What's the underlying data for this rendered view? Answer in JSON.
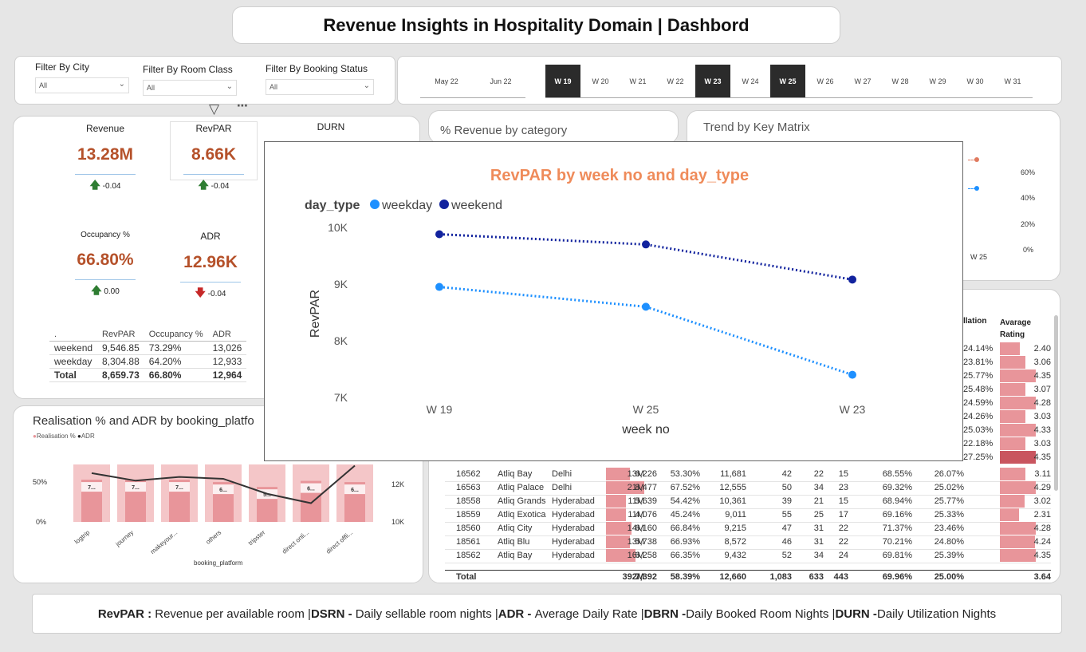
{
  "title": "Revenue Insights in Hospitality Domain | Dashbord",
  "filters": [
    {
      "label": "Filter By City",
      "value": "All"
    },
    {
      "label": "Filter By Room Class",
      "value": "All"
    },
    {
      "label": "Filter By Booking Status",
      "value": "All"
    }
  ],
  "weeks": {
    "months": [
      "May 22",
      "Jun 22"
    ],
    "items": [
      {
        "label": "W 19",
        "selected": true
      },
      {
        "label": "W 20",
        "selected": false
      },
      {
        "label": "W 21",
        "selected": false
      },
      {
        "label": "W 22",
        "selected": false
      },
      {
        "label": "W 23",
        "selected": true
      },
      {
        "label": "W 24",
        "selected": false
      },
      {
        "label": "W 25",
        "selected": true
      },
      {
        "label": "W 26",
        "selected": false
      },
      {
        "label": "W 27",
        "selected": false
      },
      {
        "label": "W 28",
        "selected": false
      },
      {
        "label": "W 29",
        "selected": false
      },
      {
        "label": "W 30",
        "selected": false
      },
      {
        "label": "W 31",
        "selected": false
      }
    ]
  },
  "kpis": {
    "revenue": {
      "title": "Revenue",
      "value": "13.28M",
      "delta": "-0.04"
    },
    "revpar": {
      "title": "RevPAR",
      "value": "8.66K",
      "delta": "-0.04"
    },
    "durn": {
      "title": "DURN"
    },
    "occupancy": {
      "title": "Occupancy %",
      "value": "66.80%",
      "delta": "0.00"
    },
    "adr": {
      "title": "ADR",
      "value": "12.96K",
      "delta": "-0.04"
    }
  },
  "day_table": {
    "headers": [
      ".",
      "RevPAR",
      "Occupancy %",
      "ADR"
    ],
    "rows": [
      [
        "weekend",
        "9,546.85",
        "73.29%",
        "13,026"
      ],
      [
        "weekday",
        "8,304.88",
        "64.20%",
        "12,933"
      ]
    ],
    "total": [
      "Total",
      "8,659.73",
      "66.80%",
      "12,964"
    ]
  },
  "category_title": "% Revenue by category",
  "trend": {
    "title": "Trend by Key Matrix",
    "yticks": [
      "60%",
      "40%",
      "20%",
      "0%"
    ],
    "xtick": "W 25"
  },
  "realisation": {
    "title": "Realisation % and ADR by booking_platfo",
    "legend": [
      "Realisation %",
      "ADR"
    ],
    "yleft": [
      "50%",
      "0%"
    ],
    "yright": [
      "12K",
      "10K"
    ],
    "xlabel": "booking_platform",
    "platforms": [
      "logtrip",
      "journey",
      "makeyour...",
      "others",
      "tripster",
      "direct onli...",
      "direct offli..."
    ],
    "bar_labels": [
      "7...",
      "7...",
      "7...",
      "6...",
      "5...",
      "6...",
      "6..."
    ],
    "realisation_pct": [
      70,
      70,
      70,
      66,
      58,
      68,
      66
    ],
    "adr_k": [
      12.6,
      12.2,
      12.4,
      12.3,
      11.5,
      11.0,
      13.0
    ]
  },
  "hotel_table": {
    "headers": [
      "llation",
      "Avarage Rating"
    ],
    "top_rows": [
      {
        "util": "24.14%",
        "rating": "2.40",
        "rating_val": 2.4
      },
      {
        "util": "23.81%",
        "rating": "3.06",
        "rating_val": 3.06
      },
      {
        "util": "25.77%",
        "rating": "4.35",
        "rating_val": 4.35
      },
      {
        "util": "25.48%",
        "rating": "3.07",
        "rating_val": 3.07
      },
      {
        "util": "24.59%",
        "rating": "4.28",
        "rating_val": 4.28
      },
      {
        "util": "24.26%",
        "rating": "3.03",
        "rating_val": 3.03
      },
      {
        "util": "25.03%",
        "rating": "4.33",
        "rating_val": 4.33
      },
      {
        "util": "22.18%",
        "rating": "3.03",
        "rating_val": 3.03
      },
      {
        "util": "27.25%",
        "rating": "4.35",
        "rating_val": 4.35
      }
    ],
    "rows": [
      [
        "16562",
        "Atliq Bay",
        "Delhi",
        "13M",
        "6,226",
        "53.30%",
        "11,681",
        "42",
        "22",
        "15",
        "68.55%",
        "26.07%",
        "3.11"
      ],
      [
        "16563",
        "Atliq Palace",
        "Delhi",
        "21M",
        "8,477",
        "67.52%",
        "12,555",
        "50",
        "34",
        "23",
        "69.32%",
        "25.02%",
        "4.29"
      ],
      [
        "18558",
        "Atliq Grands",
        "Hyderabad",
        "11M",
        "5,639",
        "54.42%",
        "10,361",
        "39",
        "21",
        "15",
        "68.94%",
        "25.77%",
        "3.02"
      ],
      [
        "18559",
        "Atliq Exotica",
        "Hyderabad",
        "11M",
        "4,076",
        "45.24%",
        "9,011",
        "55",
        "25",
        "17",
        "69.16%",
        "25.33%",
        "2.31"
      ],
      [
        "18560",
        "Atliq City",
        "Hyderabad",
        "14M",
        "6,160",
        "66.84%",
        "9,215",
        "47",
        "31",
        "22",
        "71.37%",
        "23.46%",
        "4.28"
      ],
      [
        "18561",
        "Atliq Blu",
        "Hyderabad",
        "13M",
        "5,738",
        "66.93%",
        "8,572",
        "46",
        "31",
        "22",
        "70.21%",
        "24.80%",
        "4.24"
      ],
      [
        "18562",
        "Atliq Bay",
        "Hyderabad",
        "16M",
        "6,258",
        "66.35%",
        "9,432",
        "52",
        "34",
        "24",
        "69.81%",
        "25.39%",
        "4.35"
      ]
    ],
    "total": [
      "Total",
      "392M",
      "7,392",
      "58.39%",
      "12,660",
      "1,083",
      "633",
      "443",
      "69.96%",
      "25.00%",
      "3.64"
    ]
  },
  "footer": {
    "parts": [
      {
        "b": "RevPAR : ",
        "t": "Revenue per available room | "
      },
      {
        "b": "DSRN - ",
        "t": "Daily sellable room nights | "
      },
      {
        "b": "ADR - ",
        "t": "Average Daily Rate |"
      },
      {
        "b": "DBRN -",
        "t": "Daily Booked Room Nights | "
      },
      {
        "b": "DURN -",
        "t": "Daily Utilization Nights"
      }
    ]
  },
  "chart_data": {
    "type": "line",
    "title": "RevPAR by week no and day_type",
    "legend_title": "day_type",
    "xlabel": "week no",
    "ylabel": "RevPAR",
    "categories": [
      "W 19",
      "W 25",
      "W 23"
    ],
    "yticks": [
      "10K",
      "9K",
      "8K",
      "7K"
    ],
    "ylim": [
      7000,
      10000
    ],
    "series": [
      {
        "name": "weekday",
        "color": "#1e90ff",
        "values": [
          8950,
          8600,
          7400
        ]
      },
      {
        "name": "weekend",
        "color": "#12239e",
        "values": [
          9880,
          9700,
          9080
        ]
      }
    ]
  }
}
